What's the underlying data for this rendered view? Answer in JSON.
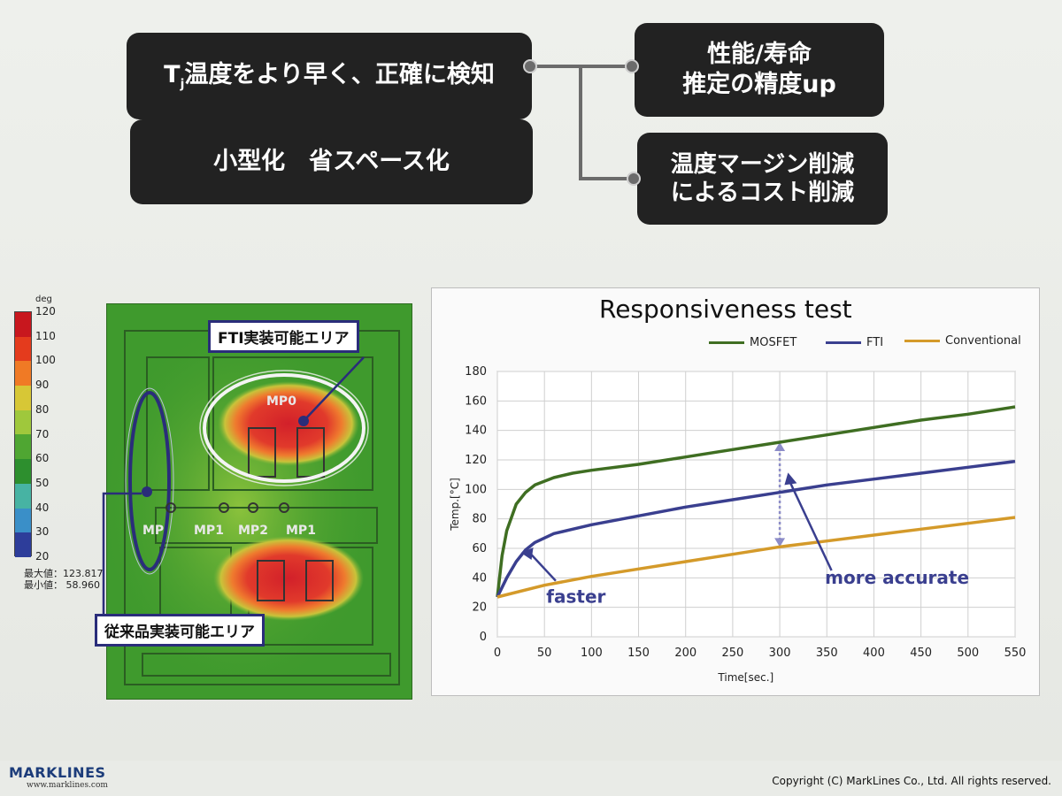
{
  "pills": {
    "tj_prefix": "T",
    "tj_sub": "j",
    "tj_rest": "温度をより早く、正確に検知",
    "compact": "小型化　省スペース化",
    "performance_line1": "性能/寿命",
    "performance_line2": "推定の精度up",
    "margin_line1": "温度マージン削減",
    "margin_line2": "によるコスト削減"
  },
  "thermal": {
    "unit": "deg",
    "ticks": [
      "120",
      "110",
      "100",
      "90",
      "80",
      "70",
      "60",
      "50",
      "40",
      "30",
      "20"
    ],
    "max_label": "最大値：123.817",
    "min_label": "最小値：  58.960",
    "colorscale": [
      "#c8171e",
      "#e43b1d",
      "#f07a25",
      "#d7c736",
      "#9fc83c",
      "#4fa632",
      "#2d8f2e",
      "#47b3a3",
      "#3a8fc8",
      "#2d3d9a",
      "#1d2577"
    ],
    "callout_fti": "FTI実装可能エリア",
    "callout_conventional": "従来品実装可能エリア",
    "mp_labels": {
      "mp0": "MP0",
      "mp_left": "MP",
      "mp1a": "MP1",
      "mp2": "MP2",
      "mp1b": "MP1"
    }
  },
  "chart_data": {
    "type": "line",
    "title": "Responsiveness test",
    "xlabel": "Time[sec.]",
    "ylabel": "Temp.[°C]",
    "xlim": [
      0,
      550
    ],
    "ylim": [
      0,
      180
    ],
    "xticks": [
      0,
      50,
      100,
      150,
      200,
      250,
      300,
      350,
      400,
      450,
      500,
      550
    ],
    "yticks": [
      0,
      20,
      40,
      60,
      80,
      100,
      120,
      140,
      160,
      180
    ],
    "legend_position": "top-right",
    "grid": true,
    "series": [
      {
        "name": "MOSFET",
        "color": "#3f6e22",
        "x": [
          0,
          5,
          10,
          20,
          30,
          40,
          60,
          80,
          100,
          150,
          200,
          250,
          300,
          350,
          400,
          450,
          500,
          550
        ],
        "y": [
          27,
          55,
          72,
          90,
          98,
          103,
          108,
          111,
          113,
          117,
          122,
          127,
          132,
          137,
          142,
          147,
          151,
          156
        ]
      },
      {
        "name": "FTI",
        "color": "#3a3f8f",
        "x": [
          0,
          10,
          20,
          30,
          40,
          60,
          80,
          100,
          150,
          200,
          250,
          300,
          350,
          400,
          450,
          500,
          550
        ],
        "y": [
          27,
          40,
          51,
          59,
          64,
          70,
          73,
          76,
          82,
          88,
          93,
          98,
          103,
          107,
          111,
          115,
          119
        ]
      },
      {
        "name": "Conventional",
        "color": "#d49a2a",
        "x": [
          0,
          50,
          100,
          150,
          200,
          250,
          300,
          350,
          400,
          450,
          500,
          550
        ],
        "y": [
          27,
          35,
          41,
          46,
          51,
          56,
          61,
          65,
          69,
          73,
          77,
          81
        ]
      }
    ],
    "annotations": [
      {
        "text": "faster",
        "arrow_to": [
          25,
          57
        ]
      },
      {
        "text": "more accurate",
        "arrow_to": [
          305,
          103
        ]
      }
    ],
    "gap_marker": {
      "x": 300,
      "y_top": 132,
      "y_bottom": 61
    }
  },
  "footer": {
    "logo": "MARKLINES",
    "url": "www.marklines.com",
    "copyright": "Copyright (C) MarkLines Co., Ltd. All rights reserved."
  }
}
